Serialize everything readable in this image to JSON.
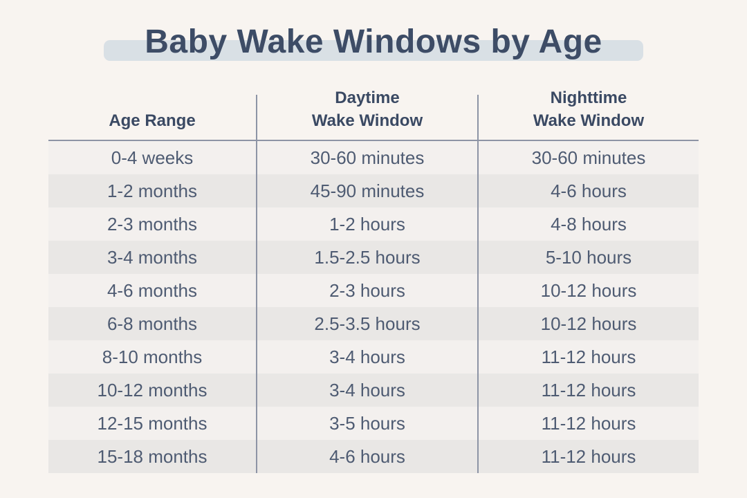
{
  "title": "Baby Wake Windows by Age",
  "table": {
    "headers": [
      "Age Range",
      "Daytime\nWake Window",
      "Nighttime\nWake Window"
    ]
  },
  "chart_data": {
    "type": "table",
    "title": "Baby Wake Windows by Age",
    "columns": [
      "Age Range",
      "Daytime Wake Window",
      "Nighttime Wake Window"
    ],
    "rows": [
      [
        "0-4 weeks",
        "30-60 minutes",
        "30-60 minutes"
      ],
      [
        "1-2 months",
        "45-90 minutes",
        "4-6 hours"
      ],
      [
        "2-3 months",
        "1-2 hours",
        "4-8 hours"
      ],
      [
        "3-4 months",
        "1.5-2.5 hours",
        "5-10 hours"
      ],
      [
        "4-6 months",
        "2-3 hours",
        "10-12 hours"
      ],
      [
        "6-8 months",
        "2.5-3.5 hours",
        "10-12 hours"
      ],
      [
        "8-10 months",
        "3-4 hours",
        "11-12 hours"
      ],
      [
        "10-12 months",
        "3-4 hours",
        "11-12 hours"
      ],
      [
        "12-15 months",
        "3-5 hours",
        "11-12 hours"
      ],
      [
        "15-18 months",
        "4-6 hours",
        "11-12 hours"
      ]
    ],
    "layout": {
      "row_striping": true,
      "column_dividers": true,
      "header_position": "top"
    }
  },
  "colors": {
    "background": "#f8f4f0",
    "title_text": "#3d4c66",
    "title_highlight": "#d9e0e5",
    "header_text": "#3a4963",
    "body_text": "#4e5b72",
    "divider": "#8d94a5",
    "row_odd": "#f3f0ee",
    "row_even": "#e9e7e5"
  }
}
